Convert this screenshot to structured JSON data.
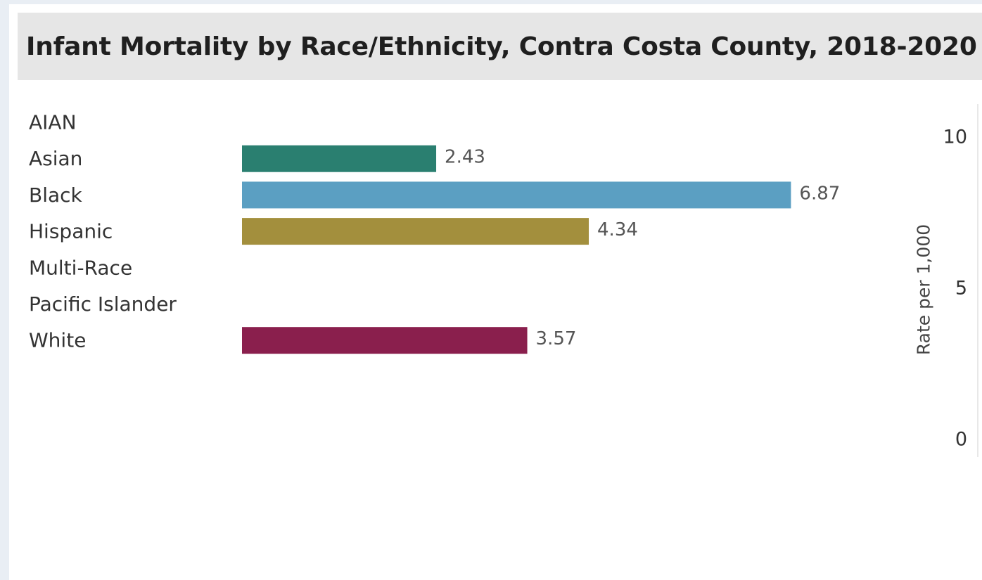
{
  "chart_data": {
    "type": "bar",
    "orientation": "horizontal",
    "title": "Infant Mortality by Race/Ethnicity, Contra Costa County, 2018-2020",
    "categories": [
      "AIAN",
      "Asian",
      "Black",
      "Hispanic",
      "Multi-Race",
      "Pacific Islander",
      "White"
    ],
    "values": [
      null,
      2.43,
      6.87,
      4.34,
      null,
      null,
      3.57
    ],
    "value_labels": [
      "",
      "2.43",
      "6.87",
      "4.34",
      "",
      "",
      "3.57"
    ],
    "colors": [
      null,
      "#2a7f70",
      "#5b9fc2",
      "#a38f3d",
      null,
      null,
      "#8a1f4d"
    ],
    "ylabel": "Rate per 1,000",
    "yticks": [
      "10",
      "5",
      "0"
    ],
    "ylim": [
      0,
      10
    ],
    "grid": false,
    "legend": "none"
  }
}
